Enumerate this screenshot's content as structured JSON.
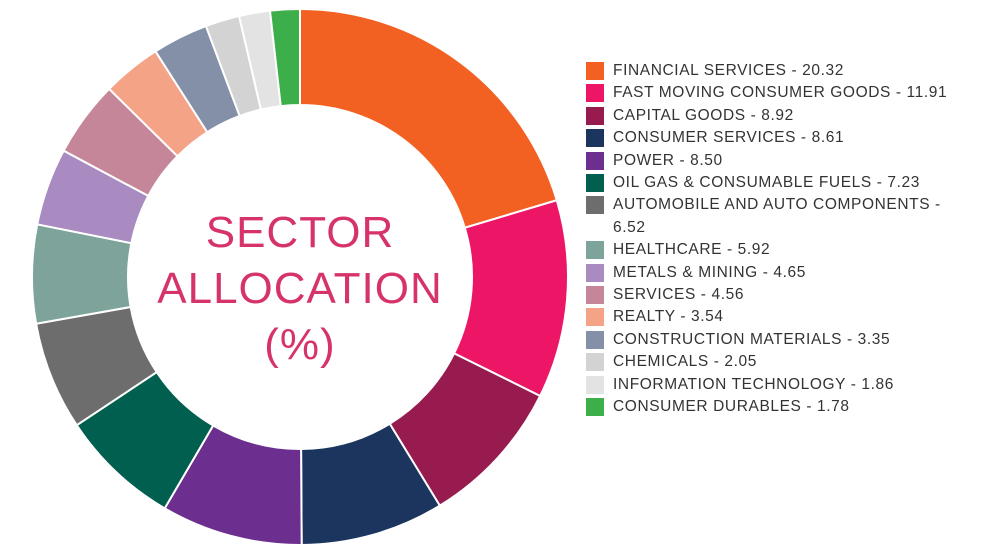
{
  "chart_data": {
    "type": "donut",
    "title": "SECTOR ALLOCATION (%)",
    "categories": [
      "FINANCIAL SERVICES - 20.32",
      "FAST MOVING CONSUMER GOODS - 11.91",
      "CAPITAL GOODS - 8.92",
      "CONSUMER SERVICES - 8.61",
      "POWER - 8.50",
      "OIL GAS & CONSUMABLE FUELS - 7.23",
      "AUTOMOBILE AND AUTO COMPONENTS - 6.52",
      "HEALTHCARE - 5.92",
      "METALS & MINING - 4.65",
      "SERVICES - 4.56",
      "REALTY - 3.54",
      "CONSTRUCTION MATERIALS - 3.35",
      "CHEMICALS - 2.05",
      "INFORMATION TECHNOLOGY - 1.86",
      "CONSUMER DURABLES - 1.78"
    ],
    "values": [
      20.32,
      11.91,
      8.92,
      8.61,
      8.5,
      7.23,
      6.52,
      5.92,
      4.65,
      4.56,
      3.54,
      3.35,
      2.05,
      1.86,
      1.78
    ],
    "colors": [
      "#f26022",
      "#ec1566",
      "#971b4f",
      "#1b355e",
      "#6d2f8f",
      "#005f4e",
      "#6d6d6d",
      "#7ea39a",
      "#a98bc2",
      "#c6869a",
      "#f5a387",
      "#8390a8",
      "#d3d3d3",
      "#e3e3e3",
      "#3daf4a"
    ],
    "title_color": "#d6336c"
  }
}
